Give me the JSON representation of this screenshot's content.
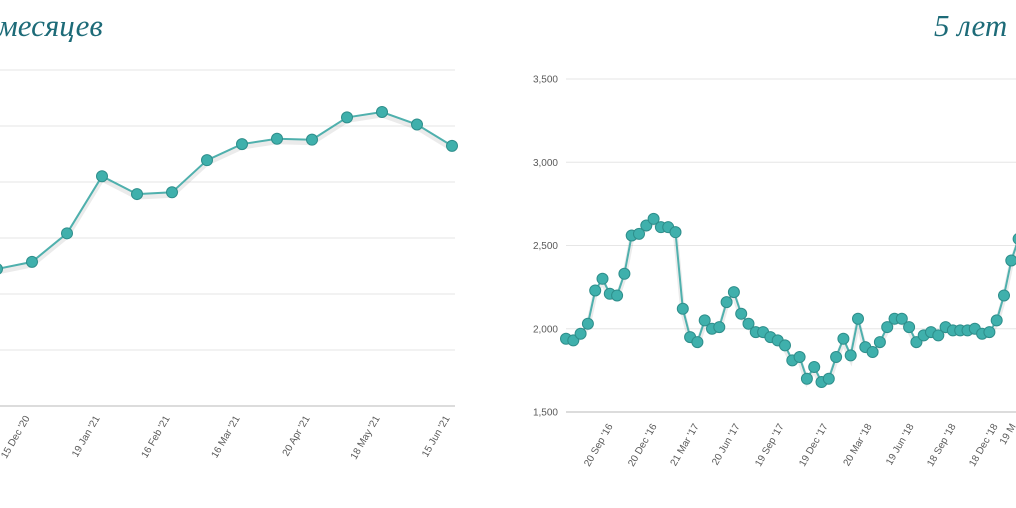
{
  "chart_data": [
    {
      "type": "line",
      "title": "месяцев",
      "x_tick_labels": [
        "15 Dec '20",
        "19 Jan '21",
        "16 Feb '21",
        "16 Mar '21",
        "20 Apr '21",
        "18 May '21",
        "15 Jun '21"
      ],
      "series": [
        {
          "values": [
            2180,
            2220,
            2380,
            2700,
            2600,
            2610,
            2790,
            2880,
            2910,
            2905,
            3030,
            3060,
            2990,
            2870
          ]
        }
      ],
      "grid": true,
      "color": "#3fb0ac"
    },
    {
      "type": "line",
      "title": "5 лет",
      "y_tick_labels": [
        "3,500",
        "3,000",
        "2,500",
        "2,000",
        "1,500"
      ],
      "ylim": [
        1500,
        3500
      ],
      "x_tick_labels": [
        "20 Sep '16",
        "20 Dec '16",
        "21 Mar '17",
        "20 Jun '17",
        "19 Sep '17",
        "19 Dec '17",
        "20 Mar '18",
        "19 Jun '18",
        "18 Sep '18",
        "18 Dec '18",
        "19 M"
      ],
      "series": [
        {
          "values": [
            1940,
            1930,
            1970,
            2030,
            2230,
            2300,
            2210,
            2200,
            2330,
            2560,
            2570,
            2620,
            2660,
            2610,
            2610,
            2580,
            2120,
            1950,
            1920,
            2050,
            2000,
            2010,
            2160,
            2220,
            2090,
            2030,
            1980,
            1980,
            1950,
            1930,
            1900,
            1810,
            1830,
            1700,
            1770,
            1680,
            1700,
            1830,
            1940,
            1840,
            2060,
            1890,
            1860,
            1920,
            2010,
            2060,
            2060,
            2010,
            1920,
            1960,
            1980,
            1960,
            2010,
            1990,
            1990,
            1990,
            2000,
            1970,
            1980,
            2050,
            2200,
            2410,
            2540,
            2590
          ]
        }
      ],
      "grid": true,
      "color": "#3fb0ac"
    }
  ]
}
